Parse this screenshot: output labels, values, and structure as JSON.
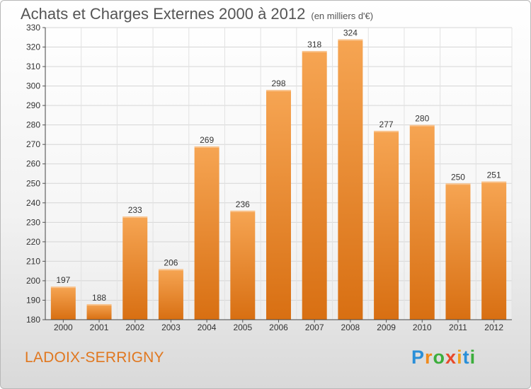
{
  "header": {
    "title": "Achats et Charges Externes 2000 à 2012",
    "subtitle": "(en milliers d'€)"
  },
  "footer": {
    "place": "LADOIX-SERRIGNY",
    "brand_letters": [
      "P",
      "r",
      "o",
      "x",
      "i",
      "t",
      "i"
    ]
  },
  "colors": {
    "bar_top": "#f6a553",
    "bar_bottom": "#d86f12",
    "place_text": "#e0771f",
    "brand": [
      "#2a8fd8",
      "#f08a1c",
      "#3cae3c",
      "#e84a2a",
      "#f0a01c",
      "#2a8fd8",
      "#3cae3c"
    ]
  },
  "chart_data": {
    "type": "bar",
    "categories": [
      "2000",
      "2001",
      "2002",
      "2003",
      "2004",
      "2005",
      "2006",
      "2007",
      "2008",
      "2009",
      "2010",
      "2011",
      "2012"
    ],
    "values": [
      197,
      188,
      233,
      206,
      269,
      236,
      298,
      318,
      324,
      277,
      280,
      250,
      251
    ],
    "ylim": [
      180,
      330
    ],
    "yticks": [
      180,
      190,
      200,
      210,
      220,
      230,
      240,
      250,
      260,
      270,
      280,
      290,
      300,
      310,
      320,
      330
    ],
    "grid": true,
    "data_labels": true
  }
}
